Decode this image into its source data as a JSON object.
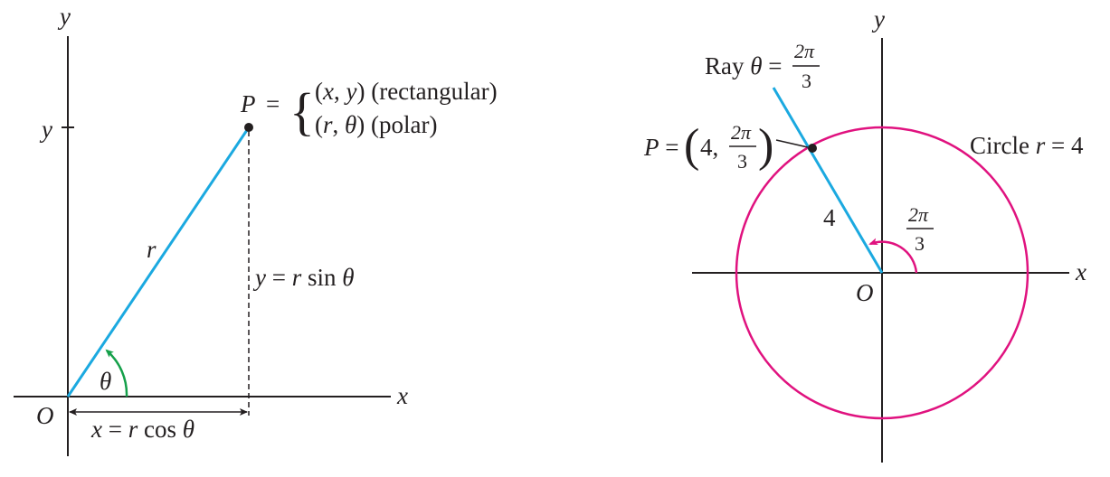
{
  "colors": {
    "ink": "#231f20",
    "ray": "#1ba9e0",
    "angle_arrow_left": "#15a04a",
    "circle": "#e0127f"
  },
  "left_diagram": {
    "axis_y_label": "y",
    "axis_x_label": "x",
    "origin_label": "O",
    "y_tick_label": "y",
    "point_label": "P",
    "equals_sign": "=",
    "rect_coords": "(x, y)",
    "rect_word": "(rectangular)",
    "polar_coords": "(r, θ)",
    "polar_word": "(polar)",
    "radius_label": "r",
    "angle_label": "θ",
    "y_formula": "y = r sin θ",
    "x_formula": "x = r cos θ"
  },
  "right_diagram": {
    "axis_y_label": "y",
    "axis_x_label": "x",
    "origin_label": "O",
    "ray_prefix": "Ray θ =",
    "two_pi": "2π",
    "three": "3",
    "point_prefix": "P =",
    "point_r": "4,",
    "circle_label": "Circle r = 4",
    "radius_value": "4"
  }
}
